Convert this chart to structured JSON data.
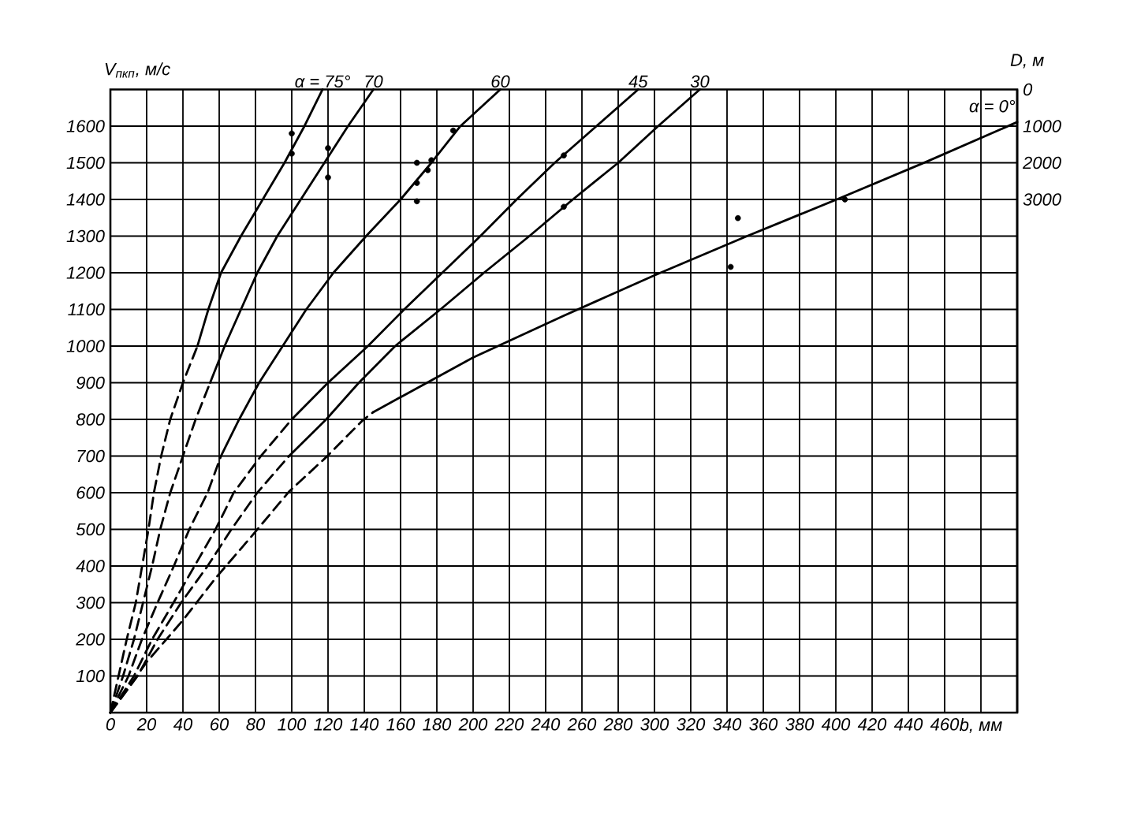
{
  "chart_data": {
    "type": "line",
    "xlabel": "b, мм",
    "ylabel": "V$_{пкп}$, м/с",
    "y2label": "D, м",
    "xlim": [
      0,
      500
    ],
    "xticks": [
      0,
      20,
      40,
      60,
      80,
      100,
      120,
      140,
      160,
      180,
      200,
      220,
      240,
      260,
      280,
      300,
      320,
      340,
      360,
      380,
      400,
      420,
      440,
      460,
      {
        "value": 480,
        "label": null
      }
    ],
    "ylim": [
      0,
      1700
    ],
    "yticks": [
      100,
      200,
      300,
      400,
      500,
      600,
      700,
      800,
      900,
      1000,
      1100,
      1200,
      1300,
      1400,
      1500,
      1600
    ],
    "y2lim": [
      17000,
      0
    ],
    "y2ticks": [
      0,
      1000,
      2000,
      3000
    ],
    "grid": true,
    "series": [
      {
        "name": "α = 75°",
        "color": "#000000",
        "x": [
          48,
          54,
          61,
          72,
          84,
          96,
          107,
          117
        ],
        "values": [
          1000,
          1100,
          1200,
          1300,
          1400,
          1500,
          1600,
          1700
        ]
      },
      {
        "color": "#000000",
        "line_style": "dashed",
        "x": [
          0,
          4.5,
          9,
          14,
          17.5,
          21,
          24,
          28,
          33,
          40,
          48
        ],
        "values": [
          0,
          100,
          200,
          300,
          400,
          500,
          600,
          700,
          800,
          900,
          1000
        ]
      },
      {
        "name": "70",
        "color": "#000000",
        "x": [
          55,
          63,
          72,
          81,
          92,
          105,
          118,
          131,
          145
        ],
        "values": [
          900,
          1000,
          1100,
          1200,
          1300,
          1400,
          1500,
          1600,
          1700
        ]
      },
      {
        "color": "#000000",
        "line_style": "dashed",
        "x": [
          0,
          7,
          13,
          18,
          23,
          27.5,
          33,
          40,
          47,
          55
        ],
        "values": [
          0,
          100,
          200,
          300,
          400,
          500,
          600,
          700,
          800,
          900
        ]
      },
      {
        "name": "60",
        "color": "#000000",
        "x": [
          61,
          71,
          82,
          95,
          108,
          123,
          141,
          160,
          177,
          193,
          215
        ],
        "values": [
          700,
          800,
          900,
          1000,
          1100,
          1200,
          1300,
          1400,
          1500,
          1600,
          1700
        ]
      },
      {
        "color": "#000000",
        "line_style": "dashed",
        "x": [
          0,
          10,
          17.4,
          26,
          35,
          43.5,
          53.6,
          61
        ],
        "values": [
          0,
          100,
          200,
          300,
          400,
          500,
          600,
          700
        ]
      },
      {
        "name": "45",
        "color": "#000000",
        "x": [
          100,
          120,
          142,
          162,
          183,
          204,
          224,
          245,
          268,
          291
        ],
        "values": [
          800,
          900,
          1000,
          1100,
          1200,
          1300,
          1400,
          1500,
          1600,
          1700
        ]
      },
      {
        "color": "#000000",
        "line_style": "dashed",
        "x": [
          0,
          13,
          23,
          34.8,
          46.4,
          58,
          68,
          83,
          100
        ],
        "values": [
          0,
          100,
          200,
          300,
          400,
          500,
          600,
          700,
          800
        ]
      },
      {
        "name": "30",
        "color": "#000000",
        "x": [
          98.5,
          119,
          137,
          157,
          182,
          206,
          231,
          255,
          280,
          302,
          325
        ],
        "values": [
          700,
          800,
          900,
          1000,
          1100,
          1200,
          1300,
          1400,
          1500,
          1600,
          1700
        ]
      },
      {
        "color": "#000000",
        "line_style": "dashed",
        "x": [
          0,
          15,
          26,
          39,
          53.6,
          66.7,
          81,
          98.5
        ],
        "values": [
          0,
          100,
          200,
          300,
          400,
          500,
          600,
          700
        ]
      },
      {
        "name": "α = 0°",
        "color": "#000000",
        "x": [
          145,
          200,
          250,
          300,
          350,
          400,
          450,
          500
        ],
        "values": [
          820,
          969,
          1083,
          1193,
          1298,
          1399,
          1503,
          1611
        ]
      },
      {
        "color": "#000000",
        "line_style": "dashed",
        "x": [
          0,
          20,
          40,
          58,
          78,
          98.5,
          119,
          139,
          145
        ],
        "values": [
          0,
          138,
          252,
          367,
          482,
          603,
          697,
          797,
          820
        ]
      },
      {
        "type": "scatter",
        "marker": "circle",
        "color": "#000000",
        "x": [
          100,
          100,
          120,
          120,
          169,
          169,
          169,
          177,
          175,
          189,
          250,
          250,
          346,
          342,
          405
        ],
        "values": [
          1580,
          1525,
          1540,
          1460,
          1500,
          1445,
          1395,
          1507,
          1480,
          1588,
          1520,
          1380,
          1349,
          1216,
          1400
        ]
      }
    ]
  }
}
